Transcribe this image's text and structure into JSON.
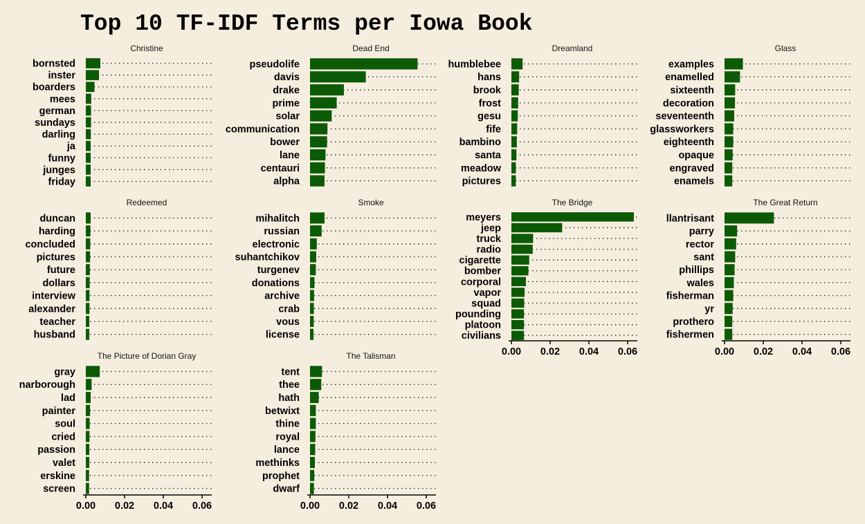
{
  "chart_data": {
    "type": "bar",
    "orientation": "horizontal",
    "title": "Top 10 TF-IDF Terms per Iowa Book",
    "xlim": [
      0,
      0.065
    ],
    "x_ticks": [
      "0.00",
      "0.02",
      "0.04",
      "0.06"
    ],
    "x_tick_values": [
      0,
      0.02,
      0.04,
      0.06
    ],
    "bar_color": "#0d5a06",
    "background": "#f5eedf",
    "grid": false,
    "panels": [
      {
        "name": "Christine",
        "terms": [
          "bornsted",
          "inster",
          "boarders",
          "mees",
          "german",
          "sundays",
          "darling",
          "ja",
          "funny",
          "junges",
          "friday"
        ],
        "values": [
          0.0075,
          0.0068,
          0.0045,
          0.0028,
          0.0027,
          0.0027,
          0.0026,
          0.0025,
          0.0025,
          0.0025,
          0.0025
        ]
      },
      {
        "name": "Dead End",
        "terms": [
          "pseudolife",
          "davis",
          "drake",
          "prime",
          "solar",
          "communication",
          "bower",
          "lane",
          "centauri",
          "alpha"
        ],
        "values": [
          0.0555,
          0.0288,
          0.0175,
          0.0138,
          0.0112,
          0.009,
          0.0088,
          0.008,
          0.0077,
          0.0075
        ]
      },
      {
        "name": "Dreamland",
        "terms": [
          "humblebee",
          "hans",
          "brook",
          "frost",
          "gesu",
          "fife",
          "bambino",
          "santa",
          "meadow",
          "pictures"
        ],
        "values": [
          0.0058,
          0.004,
          0.0038,
          0.0035,
          0.0033,
          0.003,
          0.0028,
          0.0026,
          0.0023,
          0.0023
        ]
      },
      {
        "name": "Glass",
        "terms": [
          "examples",
          "enamelled",
          "sixteenth",
          "decoration",
          "seventeenth",
          "glassworkers",
          "eighteenth",
          "opaque",
          "engraved",
          "enamels"
        ],
        "values": [
          0.0095,
          0.008,
          0.0055,
          0.0054,
          0.005,
          0.0045,
          0.0045,
          0.0042,
          0.004,
          0.004
        ]
      },
      {
        "name": "Redeemed",
        "terms": [
          "duncan",
          "harding",
          "concluded",
          "pictures",
          "future",
          "dollars",
          "interview",
          "alexander",
          "teacher",
          "husband"
        ],
        "values": [
          0.0025,
          0.0024,
          0.0023,
          0.0022,
          0.0021,
          0.002,
          0.0019,
          0.0019,
          0.0018,
          0.0018
        ]
      },
      {
        "name": "Smoke",
        "terms": [
          "mihalitch",
          "russian",
          "electronic",
          "suhantchikov",
          "turgenev",
          "donations",
          "archive",
          "crab",
          "vous",
          "license"
        ],
        "values": [
          0.0075,
          0.006,
          0.0035,
          0.0032,
          0.003,
          0.0023,
          0.0021,
          0.002,
          0.0019,
          0.0018
        ]
      },
      {
        "name": "The Bridge",
        "terms": [
          "meyers",
          "jeep",
          "truck",
          "radio",
          "cigarette",
          "bomber",
          "corporal",
          "vapor",
          "squad",
          "pounding",
          "platoon",
          "civilians"
        ],
        "values": [
          0.0632,
          0.0262,
          0.0112,
          0.011,
          0.0092,
          0.0088,
          0.0075,
          0.0068,
          0.0066,
          0.0065,
          0.0065,
          0.0065
        ]
      },
      {
        "name": "The Great Return",
        "terms": [
          "llantrisant",
          "parry",
          "rector",
          "sant",
          "phillips",
          "wales",
          "fisherman",
          "yr",
          "prothero",
          "fishermen"
        ],
        "values": [
          0.0255,
          0.0065,
          0.006,
          0.0055,
          0.0052,
          0.0048,
          0.0045,
          0.0042,
          0.004,
          0.004
        ]
      },
      {
        "name": "The Picture of Dorian Gray",
        "terms": [
          "gray",
          "narborough",
          "lad",
          "painter",
          "soul",
          "cried",
          "passion",
          "valet",
          "erskine",
          "screen"
        ],
        "values": [
          0.0072,
          0.003,
          0.0025,
          0.0022,
          0.002,
          0.0019,
          0.0018,
          0.0018,
          0.0017,
          0.0017
        ]
      },
      {
        "name": "The Talisman",
        "terms": [
          "tent",
          "thee",
          "hath",
          "betwixt",
          "thine",
          "royal",
          "lance",
          "methinks",
          "prophet",
          "dwarf"
        ],
        "values": [
          0.0062,
          0.0058,
          0.0045,
          0.003,
          0.003,
          0.0028,
          0.0027,
          0.0025,
          0.0022,
          0.002
        ]
      }
    ]
  }
}
